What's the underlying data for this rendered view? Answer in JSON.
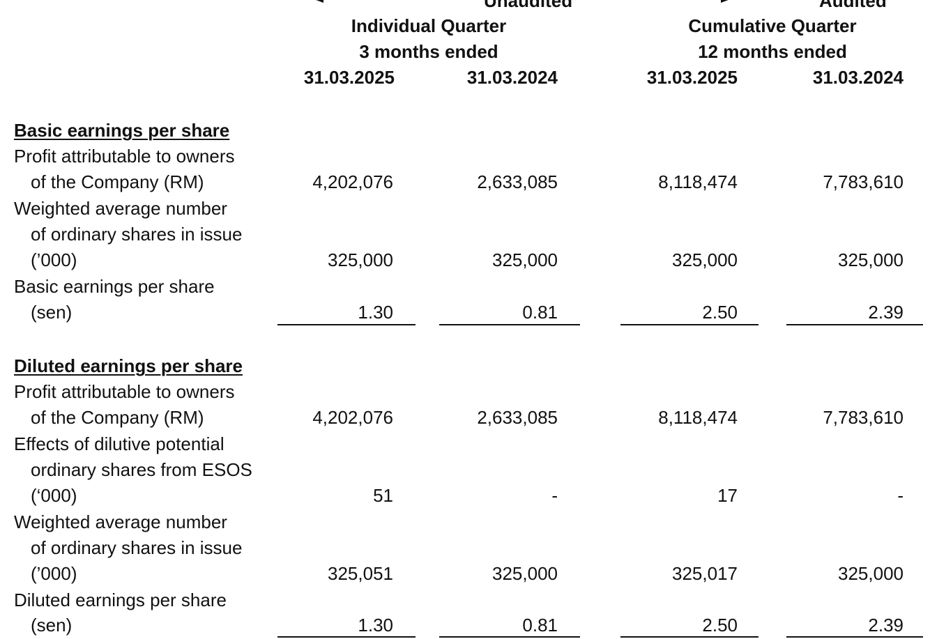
{
  "header": {
    "unaudited": "Unaudited",
    "audited": "Audited",
    "individual_quarter": "Individual Quarter",
    "individual_period": "3 months ended",
    "cumulative_quarter": "Cumulative Quarter",
    "cumulative_period": "12 months ended",
    "col1_date": "31.03.2025",
    "col2_date": "31.03.2024",
    "col3_date": "31.03.2025",
    "col4_date": "31.03.2024"
  },
  "basic": {
    "heading": "Basic earnings per share",
    "profit_label_1": "Profit attributable to owners",
    "profit_label_2": "of the Company (RM)",
    "profit": [
      "4,202,076",
      "2,633,085",
      "8,118,474",
      "7,783,610"
    ],
    "shares_label_1": "Weighted average number",
    "shares_label_2": "of ordinary shares in issue",
    "shares_label_3": "(’000)",
    "shares": [
      "325,000",
      "325,000",
      "325,000",
      "325,000"
    ],
    "eps_label_1": "Basic earnings per share",
    "eps_label_2": "(sen)",
    "eps": [
      "1.30",
      "0.81",
      "2.50",
      "2.39"
    ]
  },
  "diluted": {
    "heading": "Diluted earnings per share",
    "profit_label_1": "Profit attributable to owners",
    "profit_label_2": "of the Company (RM)",
    "profit": [
      "4,202,076",
      "2,633,085",
      "8,118,474",
      "7,783,610"
    ],
    "effects_label_1": "Effects of dilutive potential",
    "effects_label_2": "ordinary shares from ESOS",
    "effects_label_3": "(‘000)",
    "effects": [
      "51",
      "-",
      "17",
      "-"
    ],
    "shares_label_1": "Weighted average number",
    "shares_label_2": "of ordinary shares in issue",
    "shares_label_3": "(’000)",
    "shares": [
      "325,051",
      "325,000",
      "325,017",
      "325,000"
    ],
    "eps_label_1": "Diluted earnings per share",
    "eps_label_2": "(sen)",
    "eps": [
      "1.30",
      "0.81",
      "2.50",
      "2.39"
    ]
  }
}
